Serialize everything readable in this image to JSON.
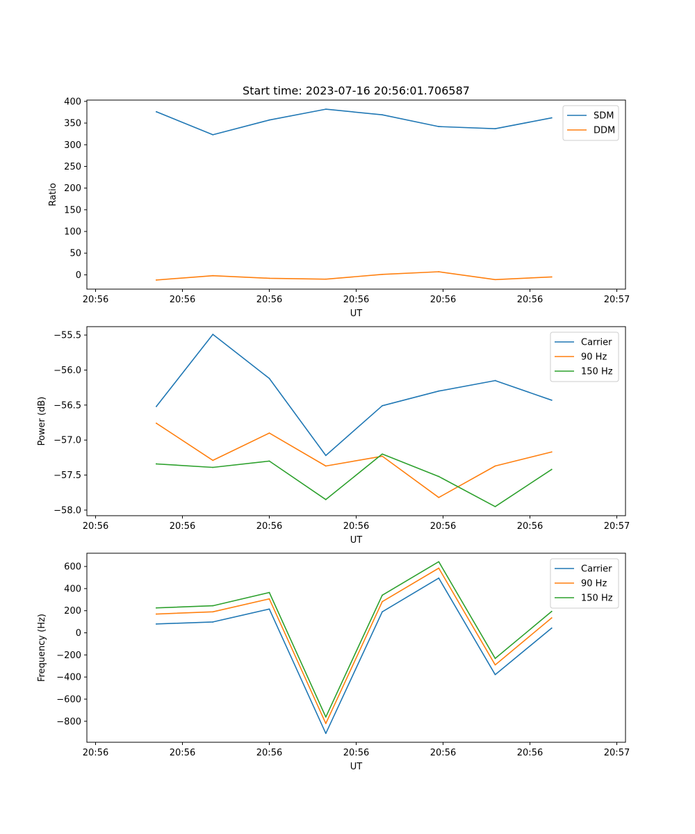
{
  "figure": {
    "title": "Start time: 2023-07-16 20:56:01.706587"
  },
  "chart_data": [
    {
      "type": "line",
      "title": "Start time: 2023-07-16 20:56:01.706587",
      "xlabel": "UT",
      "ylabel": "Ratio",
      "x": [
        0.8,
        1.45,
        2.1,
        2.75,
        3.4,
        4.05,
        4.7,
        5.35
      ],
      "xlim": [
        0.0,
        6.2
      ],
      "x_ticks": [
        0.1,
        1.1,
        2.1,
        3.1,
        4.1,
        5.1,
        6.1
      ],
      "x_tick_labels": [
        "20:56",
        "20:56",
        "20:56",
        "20:56",
        "20:56",
        "20:56",
        "20:57"
      ],
      "ylim": [
        -33,
        403
      ],
      "y_ticks": [
        0,
        50,
        100,
        150,
        200,
        250,
        300,
        350,
        400
      ],
      "y_tick_labels": [
        "0",
        "50",
        "100",
        "150",
        "200",
        "250",
        "300",
        "350",
        "400"
      ],
      "legend_position": "top-right",
      "grid": false,
      "series": [
        {
          "name": "SDM",
          "color": "#1f77b4",
          "values": [
            376,
            323,
            357,
            382,
            369,
            342,
            337,
            362
          ]
        },
        {
          "name": "DDM",
          "color": "#ff7f0e",
          "values": [
            -12,
            -2,
            -8,
            -10,
            1,
            7,
            -11,
            -5
          ]
        }
      ]
    },
    {
      "type": "line",
      "xlabel": "UT",
      "ylabel": "Power (dB)",
      "x": [
        0.8,
        1.45,
        2.1,
        2.75,
        3.4,
        4.05,
        4.7,
        5.35
      ],
      "xlim": [
        0.0,
        6.2
      ],
      "x_ticks": [
        0.1,
        1.1,
        2.1,
        3.1,
        4.1,
        5.1,
        6.1
      ],
      "x_tick_labels": [
        "20:56",
        "20:56",
        "20:56",
        "20:56",
        "20:56",
        "20:56",
        "20:57"
      ],
      "ylim": [
        -58.08,
        -55.38
      ],
      "y_ticks": [
        -55.5,
        -56.0,
        -56.5,
        -57.0,
        -57.5,
        -58.0
      ],
      "y_tick_labels": [
        "−55.5",
        "−56.0",
        "−56.5",
        "−57.0",
        "−57.5",
        "−58.0"
      ],
      "legend_position": "top-right",
      "grid": false,
      "series": [
        {
          "name": "Carrier",
          "color": "#1f77b4",
          "values": [
            -56.52,
            -55.49,
            -56.12,
            -57.22,
            -56.51,
            -56.3,
            -56.15,
            -56.43
          ]
        },
        {
          "name": "90 Hz",
          "color": "#ff7f0e",
          "values": [
            -56.76,
            -57.29,
            -56.9,
            -57.37,
            -57.23,
            -57.82,
            -57.37,
            -57.17
          ]
        },
        {
          "name": "150 Hz",
          "color": "#2ca02c",
          "values": [
            -57.34,
            -57.39,
            -57.3,
            -57.85,
            -57.2,
            -57.52,
            -57.95,
            -57.42
          ]
        }
      ]
    },
    {
      "type": "line",
      "xlabel": "UT",
      "ylabel": "Frequency (Hz)",
      "x": [
        0.8,
        1.45,
        2.1,
        2.75,
        3.4,
        4.05,
        4.7,
        5.35
      ],
      "xlim": [
        0.0,
        6.2
      ],
      "x_ticks": [
        0.1,
        1.1,
        2.1,
        3.1,
        4.1,
        5.1,
        6.1
      ],
      "x_tick_labels": [
        "20:56",
        "20:56",
        "20:56",
        "20:56",
        "20:56",
        "20:56",
        "20:57"
      ],
      "ylim": [
        -990,
        720
      ],
      "y_ticks": [
        600,
        400,
        200,
        0,
        -200,
        -400,
        -600,
        -800
      ],
      "y_tick_labels": [
        "600",
        "400",
        "200",
        "0",
        "−200",
        "−400",
        "−600",
        "−800"
      ],
      "legend_position": "top-right",
      "grid": false,
      "series": [
        {
          "name": "Carrier",
          "color": "#1f77b4",
          "values": [
            80,
            98,
            215,
            -910,
            190,
            495,
            -378,
            42
          ]
        },
        {
          "name": "90 Hz",
          "color": "#ff7f0e",
          "values": [
            170,
            190,
            307,
            -820,
            282,
            585,
            -290,
            135
          ]
        },
        {
          "name": "150 Hz",
          "color": "#2ca02c",
          "values": [
            225,
            245,
            365,
            -762,
            340,
            643,
            -232,
            193
          ]
        }
      ]
    }
  ]
}
